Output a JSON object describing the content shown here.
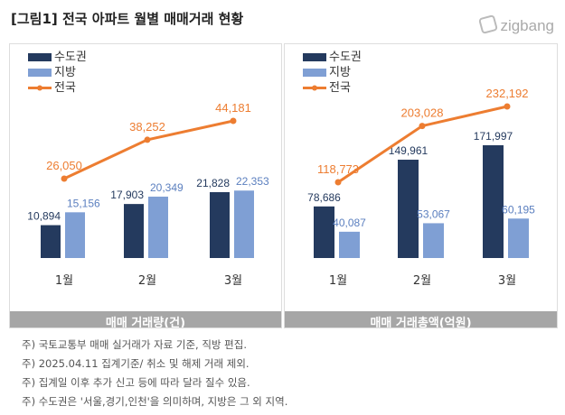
{
  "title": "[그림1] 전국 아파트 월별 매매거래 현황",
  "logo": "zigbang",
  "colors": {
    "capital": "#243a5e",
    "regional": "#7f9fd4",
    "national": "#ed7d31",
    "caption_bg": "#a6a6a6"
  },
  "chart_data": [
    {
      "type": "bar+line",
      "title": "매매 거래량(건)",
      "categories": [
        "1월",
        "2월",
        "3월"
      ],
      "series": [
        {
          "name": "수도권",
          "type": "bar",
          "values": [
            10894,
            17903,
            21828
          ],
          "labels": [
            "10,894",
            "17,903",
            "21,828"
          ]
        },
        {
          "name": "지방",
          "type": "bar",
          "values": [
            15156,
            20349,
            22353
          ],
          "labels": [
            "15,156",
            "20,349",
            "22,353"
          ]
        },
        {
          "name": "전국",
          "type": "line",
          "values": [
            26050,
            38252,
            44181
          ],
          "labels": [
            "26,050",
            "38,252",
            "44,181"
          ]
        }
      ],
      "legend": "top-left",
      "grid": false
    },
    {
      "type": "bar+line",
      "title": "매매 거래총액(억원)",
      "categories": [
        "1월",
        "2월",
        "3월"
      ],
      "series": [
        {
          "name": "수도권",
          "type": "bar",
          "values": [
            78686,
            149961,
            171997
          ],
          "labels": [
            "78,686",
            "149,961",
            "171,997"
          ]
        },
        {
          "name": "지방",
          "type": "bar",
          "values": [
            40087,
            53067,
            60195
          ],
          "labels": [
            "40,087",
            "53,067",
            "60,195"
          ]
        },
        {
          "name": "전국",
          "type": "line",
          "values": [
            118773,
            203028,
            232192
          ],
          "labels": [
            "118,773",
            "203,028",
            "232,192"
          ]
        }
      ],
      "legend": "top-left",
      "grid": false
    }
  ],
  "notes": [
    "주) 국토교통부 매매 실거래가 자료 기준, 직방 편집.",
    "주) 2025.04.11 집계기준/ 취소 및 해제 거래 제외.",
    "주) 집계일 이후 추가 신고 등에 따라 달라 질수 있음.",
    "주) 수도권은 '서울,경기,인천'을 의미하며, 지방은 그 외 지역."
  ]
}
